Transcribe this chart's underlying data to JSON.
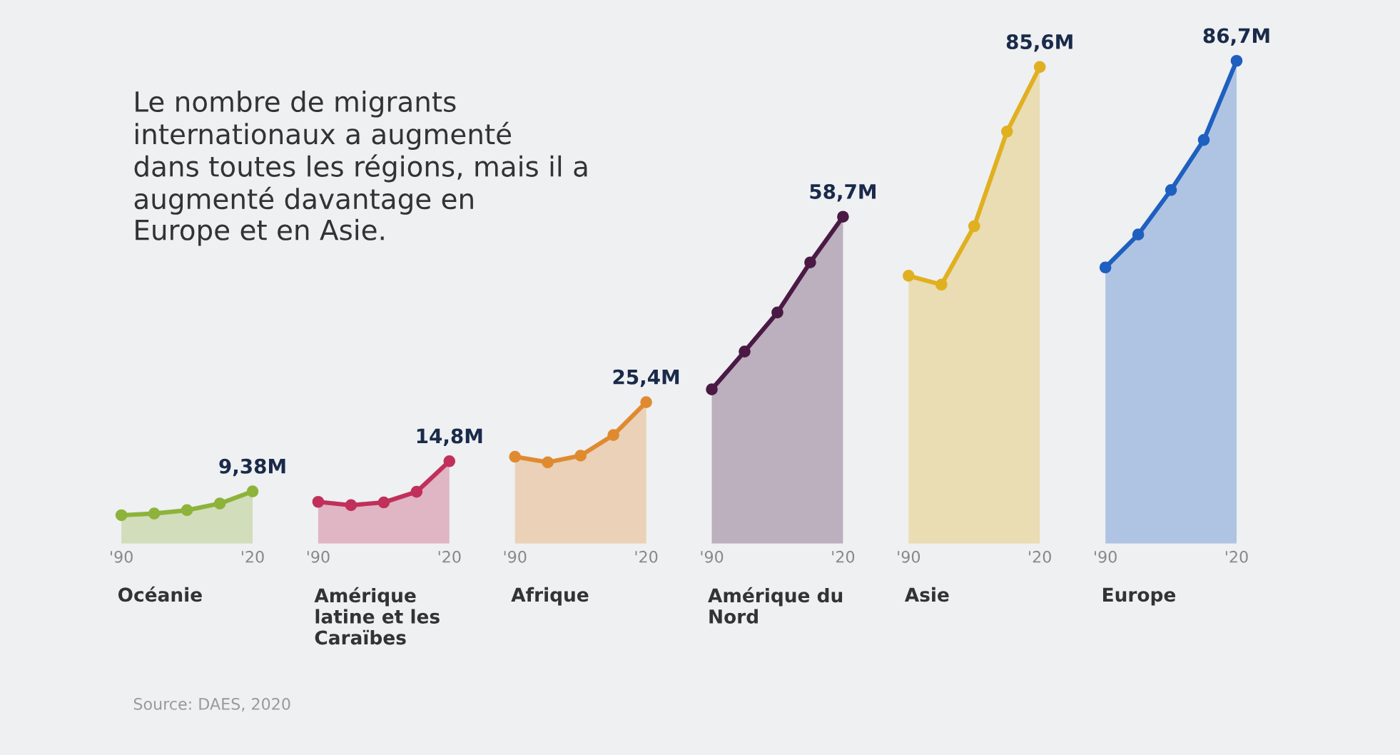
{
  "chart_data": {
    "type": "area",
    "title": "Le nombre de migrants\ninternationaux a augmenté\ndans toutes les régions, mais il a\naugmenté davantage en\nEurope et en Asie.",
    "categories": [
      "'90",
      null,
      null,
      null,
      "'20",
      null,
      "'90",
      null,
      null,
      null,
      "'20",
      null,
      "'90",
      null,
      null,
      null,
      "'20",
      null,
      "'90",
      null,
      null,
      null,
      "'20",
      null,
      "'90",
      null,
      null,
      null,
      "'20",
      null,
      "'90",
      null,
      null,
      null,
      "'20"
    ],
    "tick_labels": "x",
    "marker": "circle",
    "series": [
      {
        "name": "Océanie",
        "color": "#8db33a",
        "values": [
          5.1,
          5.4,
          6.0,
          7.2,
          9.38,
          null,
          null,
          null,
          null,
          null,
          null,
          null,
          null,
          null,
          null,
          null,
          null,
          null,
          null,
          null,
          null,
          null,
          null,
          null,
          null,
          null,
          null,
          null,
          null,
          null,
          null,
          null,
          null,
          null,
          null
        ],
        "value_labels": [
          null,
          null,
          null,
          null,
          "9,38M",
          null,
          null,
          null,
          null,
          null,
          null,
          null,
          null,
          null,
          null,
          null,
          null,
          null,
          null,
          null,
          null,
          null,
          null,
          null,
          null,
          null,
          null,
          null,
          null,
          null,
          null,
          null,
          null,
          null,
          null
        ]
      },
      {
        "name": "Amérique\nlatine et les\nCaraïbes",
        "color": "#c0305a",
        "values": [
          null,
          null,
          null,
          null,
          null,
          null,
          7.5,
          6.9,
          7.4,
          9.3,
          14.8,
          null,
          null,
          null,
          null,
          null,
          null,
          null,
          null,
          null,
          null,
          null,
          null,
          null,
          null,
          null,
          null,
          null,
          null,
          null,
          null,
          null,
          null,
          null,
          null
        ],
        "value_labels": [
          null,
          null,
          null,
          null,
          null,
          null,
          null,
          null,
          null,
          null,
          "14,8M",
          null,
          null,
          null,
          null,
          null,
          null,
          null,
          null,
          null,
          null,
          null,
          null,
          null,
          null,
          null,
          null,
          null,
          null,
          null,
          null,
          null,
          null,
          null,
          null
        ]
      },
      {
        "name": "Afrique",
        "color": "#e08a30",
        "values": [
          null,
          null,
          null,
          null,
          null,
          null,
          null,
          null,
          null,
          null,
          null,
          null,
          15.6,
          14.6,
          15.8,
          19.5,
          25.4,
          null,
          null,
          null,
          null,
          null,
          null,
          null,
          null,
          null,
          null,
          null,
          null,
          null,
          null,
          null,
          null,
          null,
          null
        ],
        "value_labels": [
          null,
          null,
          null,
          null,
          null,
          null,
          null,
          null,
          null,
          null,
          null,
          null,
          null,
          null,
          null,
          null,
          "25,4M",
          null,
          null,
          null,
          null,
          null,
          null,
          null,
          null,
          null,
          null,
          null,
          null,
          null,
          null,
          null,
          null,
          null,
          null
        ]
      },
      {
        "name": "Amérique du\nNord",
        "color": "#4a1a45",
        "values": [
          null,
          null,
          null,
          null,
          null,
          null,
          null,
          null,
          null,
          null,
          null,
          null,
          null,
          null,
          null,
          null,
          null,
          null,
          27.7,
          34.5,
          41.5,
          50.5,
          58.7,
          null,
          null,
          null,
          null,
          null,
          null,
          null,
          null,
          null,
          null,
          null,
          null
        ],
        "value_labels": [
          null,
          null,
          null,
          null,
          null,
          null,
          null,
          null,
          null,
          null,
          null,
          null,
          null,
          null,
          null,
          null,
          null,
          null,
          null,
          null,
          null,
          null,
          "58,7M",
          null,
          null,
          null,
          null,
          null,
          null,
          null,
          null,
          null,
          null,
          null,
          null
        ]
      },
      {
        "name": "Asie",
        "color": "#e0b020",
        "values": [
          null,
          null,
          null,
          null,
          null,
          null,
          null,
          null,
          null,
          null,
          null,
          null,
          null,
          null,
          null,
          null,
          null,
          null,
          null,
          null,
          null,
          null,
          null,
          null,
          48.1,
          46.5,
          57.0,
          74.0,
          85.6,
          null,
          null,
          null,
          null,
          null,
          null
        ],
        "value_labels": [
          null,
          null,
          null,
          null,
          null,
          null,
          null,
          null,
          null,
          null,
          null,
          null,
          null,
          null,
          null,
          null,
          null,
          null,
          null,
          null,
          null,
          null,
          null,
          null,
          null,
          null,
          null,
          null,
          "85,6M",
          null,
          null,
          null,
          null,
          null,
          null
        ]
      },
      {
        "name": "Europe",
        "color": "#1f5fbf",
        "values": [
          null,
          null,
          null,
          null,
          null,
          null,
          null,
          null,
          null,
          null,
          null,
          null,
          null,
          null,
          null,
          null,
          null,
          null,
          null,
          null,
          null,
          null,
          null,
          null,
          null,
          null,
          null,
          null,
          null,
          null,
          49.6,
          55.5,
          63.5,
          72.5,
          86.7
        ],
        "value_labels": [
          null,
          null,
          null,
          null,
          null,
          null,
          null,
          null,
          null,
          null,
          null,
          null,
          null,
          null,
          null,
          null,
          null,
          null,
          null,
          null,
          null,
          null,
          null,
          null,
          null,
          null,
          null,
          null,
          null,
          null,
          null,
          null,
          null,
          null,
          "86,7M"
        ]
      }
    ],
    "annotations": [
      "Source: DAES, 2020"
    ]
  }
}
